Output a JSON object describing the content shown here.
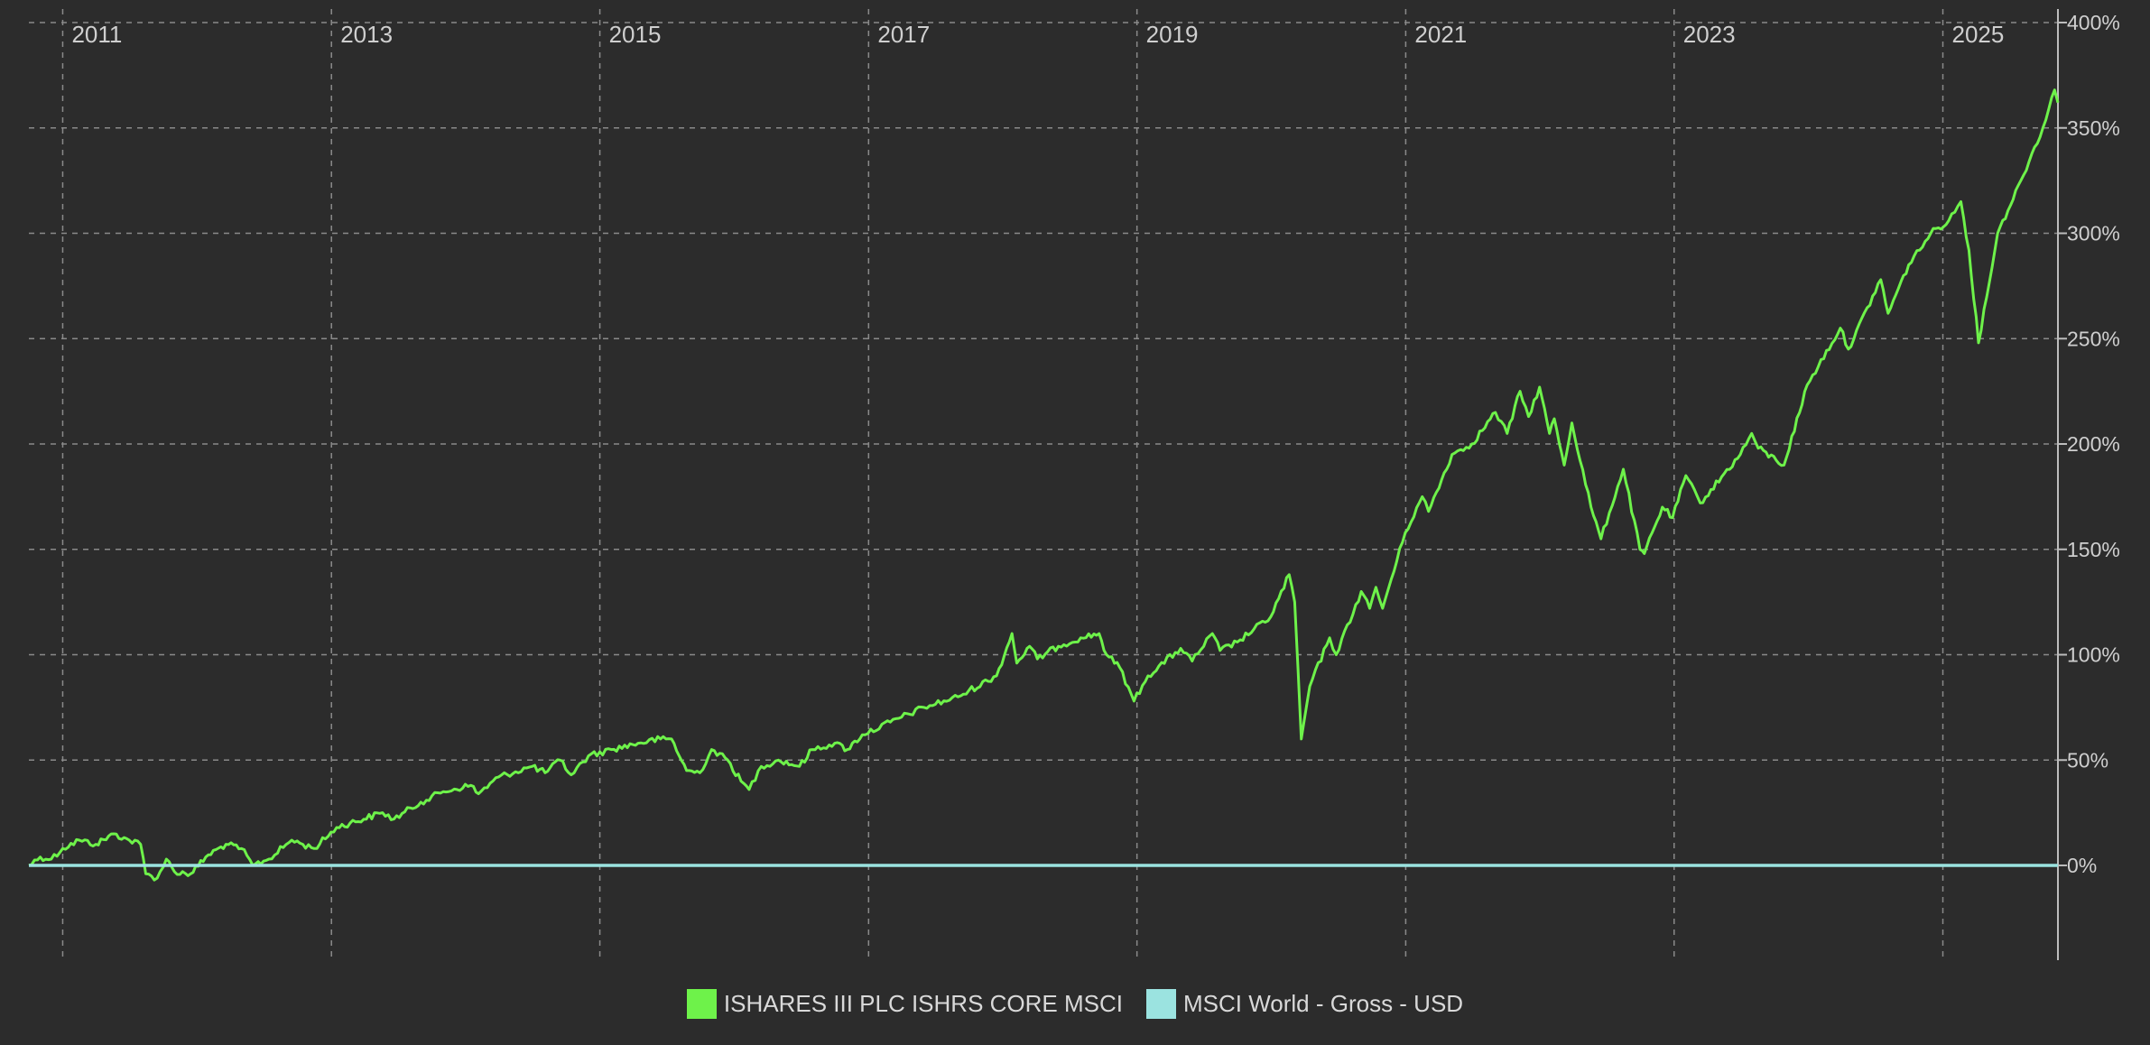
{
  "chart_data": {
    "type": "line",
    "title": "",
    "xlabel": "",
    "ylabel": "",
    "x_ticks": [
      "2011",
      "2013",
      "2015",
      "2017",
      "2019",
      "2021",
      "2023",
      "2025"
    ],
    "x_range": [
      "2010-10-01",
      "2025-11-10"
    ],
    "y_ticks": [
      "0%",
      "50%",
      "100%",
      "150%",
      "200%",
      "250%",
      "300%",
      "350%",
      "400%"
    ],
    "y_unit": "%",
    "ylim": [
      -45,
      405
    ],
    "grid": true,
    "grid_style": "dashed",
    "legend_position": "bottom-center",
    "background_color": "#2c2c2c",
    "series": [
      {
        "name": "ISHARES III PLC ISHRS CORE MSCI",
        "color": "#6ef24a",
        "points": [
          [
            "2010-10-01",
            0
          ],
          [
            "2010-11-01",
            4
          ],
          [
            "2010-12-01",
            3
          ],
          [
            "2011-01-01",
            8
          ],
          [
            "2011-02-15",
            12
          ],
          [
            "2011-04-01",
            10
          ],
          [
            "2011-05-20",
            15
          ],
          [
            "2011-07-01",
            12
          ],
          [
            "2011-08-01",
            10
          ],
          [
            "2011-08-15",
            -4
          ],
          [
            "2011-09-15",
            -6
          ],
          [
            "2011-10-10",
            3
          ],
          [
            "2011-11-01",
            -3
          ],
          [
            "2011-12-15",
            -4
          ],
          [
            "2012-02-01",
            5
          ],
          [
            "2012-03-20",
            10
          ],
          [
            "2012-05-01",
            8
          ],
          [
            "2012-06-01",
            0
          ],
          [
            "2012-07-15",
            3
          ],
          [
            "2012-09-15",
            12
          ],
          [
            "2012-10-15",
            10
          ],
          [
            "2012-11-15",
            8
          ],
          [
            "2013-01-15",
            18
          ],
          [
            "2013-05-20",
            25
          ],
          [
            "2013-06-20",
            22
          ],
          [
            "2013-09-01",
            30
          ],
          [
            "2013-11-01",
            35
          ],
          [
            "2014-01-15",
            38
          ],
          [
            "2014-02-05",
            34
          ],
          [
            "2014-04-01",
            42
          ],
          [
            "2014-07-01",
            47
          ],
          [
            "2014-08-05",
            44
          ],
          [
            "2014-09-15",
            50
          ],
          [
            "2014-10-15",
            43
          ],
          [
            "2014-12-01",
            52
          ],
          [
            "2015-02-01",
            55
          ],
          [
            "2015-04-15",
            58
          ],
          [
            "2015-06-15",
            60
          ],
          [
            "2015-07-15",
            60
          ],
          [
            "2015-08-25",
            45
          ],
          [
            "2015-09-30",
            44
          ],
          [
            "2015-11-01",
            55
          ],
          [
            "2015-12-15",
            50
          ],
          [
            "2016-01-20",
            40
          ],
          [
            "2016-02-11",
            36
          ],
          [
            "2016-03-15",
            47
          ],
          [
            "2016-05-01",
            50
          ],
          [
            "2016-06-27",
            47
          ],
          [
            "2016-08-01",
            55
          ],
          [
            "2016-10-01",
            58
          ],
          [
            "2016-11-04",
            55
          ],
          [
            "2016-12-15",
            62
          ],
          [
            "2017-03-01",
            68
          ],
          [
            "2017-06-01",
            75
          ],
          [
            "2017-09-01",
            80
          ],
          [
            "2017-12-15",
            90
          ],
          [
            "2018-01-26",
            110
          ],
          [
            "2018-02-08",
            96
          ],
          [
            "2018-03-15",
            104
          ],
          [
            "2018-04-05",
            98
          ],
          [
            "2018-06-01",
            104
          ],
          [
            "2018-08-01",
            108
          ],
          [
            "2018-09-20",
            110
          ],
          [
            "2018-10-10",
            100
          ],
          [
            "2018-11-15",
            94
          ],
          [
            "2018-12-24",
            78
          ],
          [
            "2019-01-31",
            90
          ],
          [
            "2019-04-30",
            103
          ],
          [
            "2019-05-31",
            97
          ],
          [
            "2019-07-25",
            110
          ],
          [
            "2019-08-15",
            102
          ],
          [
            "2019-10-01",
            106
          ],
          [
            "2019-12-31",
            118
          ],
          [
            "2020-02-19",
            138
          ],
          [
            "2020-03-05",
            125
          ],
          [
            "2020-03-23",
            60
          ],
          [
            "2020-04-15",
            85
          ],
          [
            "2020-06-08",
            108
          ],
          [
            "2020-06-26",
            100
          ],
          [
            "2020-09-02",
            130
          ],
          [
            "2020-09-25",
            122
          ],
          [
            "2020-10-12",
            132
          ],
          [
            "2020-10-30",
            122
          ],
          [
            "2020-12-31",
            158
          ],
          [
            "2021-02-15",
            175
          ],
          [
            "2021-03-04",
            168
          ],
          [
            "2021-05-07",
            195
          ],
          [
            "2021-06-30",
            200
          ],
          [
            "2021-09-02",
            215
          ],
          [
            "2021-10-04",
            205
          ],
          [
            "2021-11-08",
            225
          ],
          [
            "2021-12-01",
            213
          ],
          [
            "2021-12-31",
            227
          ],
          [
            "2022-01-27",
            205
          ],
          [
            "2022-02-09",
            212
          ],
          [
            "2022-03-08",
            190
          ],
          [
            "2022-03-29",
            210
          ],
          [
            "2022-05-20",
            170
          ],
          [
            "2022-06-16",
            155
          ],
          [
            "2022-08-16",
            188
          ],
          [
            "2022-09-30",
            150
          ],
          [
            "2022-10-12",
            148
          ],
          [
            "2022-11-30",
            170
          ],
          [
            "2022-12-28",
            165
          ],
          [
            "2023-02-02",
            185
          ],
          [
            "2023-03-13",
            172
          ],
          [
            "2023-06-30",
            195
          ],
          [
            "2023-07-31",
            205
          ],
          [
            "2023-08-18",
            198
          ],
          [
            "2023-10-27",
            190
          ],
          [
            "2023-12-29",
            228
          ],
          [
            "2024-03-28",
            255
          ],
          [
            "2024-04-19",
            245
          ],
          [
            "2024-07-16",
            278
          ],
          [
            "2024-08-05",
            262
          ],
          [
            "2024-09-30",
            285
          ],
          [
            "2024-11-29",
            300
          ],
          [
            "2025-01-17",
            306
          ],
          [
            "2025-02-19",
            315
          ],
          [
            "2025-03-13",
            292
          ],
          [
            "2025-04-08",
            248
          ],
          [
            "2025-05-30",
            300
          ],
          [
            "2025-08-01",
            325
          ],
          [
            "2025-09-30",
            350
          ],
          [
            "2025-11-01",
            368
          ],
          [
            "2025-11-10",
            362
          ]
        ]
      },
      {
        "name": "MSCI World - Gross - USD",
        "color": "#9be3e0",
        "points": [
          [
            "2010-10-01",
            0
          ],
          [
            "2025-11-10",
            0
          ]
        ]
      }
    ]
  }
}
